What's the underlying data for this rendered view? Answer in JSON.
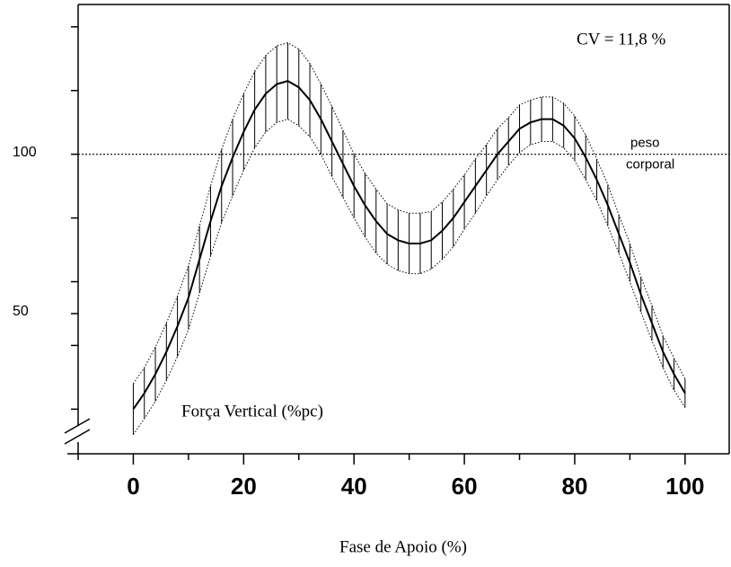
{
  "chart_data": {
    "type": "line",
    "x_label": "Fase de Apoio (%)",
    "annotations": [
      "CV = 11,8 %",
      "Força Vertical (%pc)"
    ],
    "reference_line": {
      "value": 100,
      "label": [
        "peso",
        "corporal"
      ]
    },
    "x": [
      0,
      2,
      4,
      6,
      8,
      10,
      12,
      14,
      16,
      18,
      20,
      22,
      24,
      26,
      28,
      30,
      32,
      34,
      36,
      38,
      40,
      42,
      44,
      46,
      48,
      50,
      52,
      54,
      56,
      58,
      60,
      62,
      64,
      66,
      68,
      70,
      72,
      74,
      76,
      78,
      80,
      82,
      84,
      86,
      88,
      90,
      92,
      94,
      96,
      98,
      100
    ],
    "values": [
      20,
      25,
      31,
      38,
      46,
      55,
      67,
      79,
      90,
      99,
      107,
      114,
      119,
      122,
      123,
      121,
      117,
      111,
      104,
      97,
      90,
      84,
      79,
      75,
      73,
      72,
      72,
      73,
      76,
      80,
      85,
      90,
      95,
      100,
      104,
      108,
      110,
      111,
      111,
      109,
      105,
      99,
      92,
      84,
      75,
      66,
      56,
      47,
      38,
      31,
      25
    ],
    "errors": [
      8,
      8,
      8.5,
      9,
      9.5,
      10,
      10.5,
      11,
      11.5,
      12,
      12,
      12,
      12,
      12,
      12,
      12,
      11.5,
      11,
      11,
      10.5,
      10,
      10,
      10,
      9.5,
      9.5,
      9.5,
      9.5,
      9,
      9,
      9,
      8.5,
      8.5,
      8,
      8,
      7.5,
      7.5,
      7,
      7,
      7,
      7,
      7,
      7,
      6.5,
      6.5,
      6,
      6,
      5.5,
      5.5,
      5,
      5,
      4.5
    ],
    "color": "#000000",
    "xlim": [
      -10,
      108
    ],
    "ylim": [
      6,
      147
    ],
    "xticks": [
      0,
      20,
      40,
      60,
      80,
      100
    ],
    "x_minor_ticks": [
      -10,
      10,
      30,
      50,
      70,
      90
    ],
    "yticks": [
      50,
      100
    ],
    "y_minor_ticks": [
      20,
      40,
      60,
      80,
      120,
      140
    ]
  }
}
